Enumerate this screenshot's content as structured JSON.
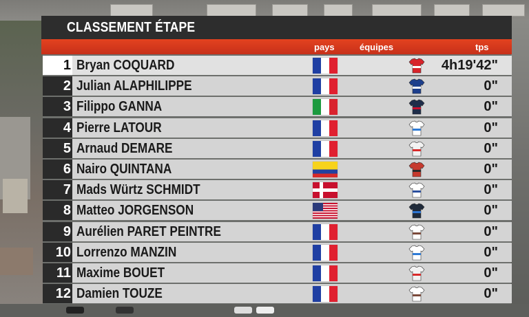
{
  "title": "CLASSEMENT ÉTAPE",
  "columns": {
    "pays": "pays",
    "equipes": "équipes",
    "tps": "tps"
  },
  "rows": [
    {
      "pos": "1",
      "name": "Bryan COQUARD",
      "flag": "france-flag",
      "jersey": "cofidis-jersey",
      "time": "4h19'42\""
    },
    {
      "pos": "2",
      "name": "Julian ALAPHILIPPE",
      "flag": "france-flag",
      "jersey": "soudal-quickstep-jersey",
      "time": "0\""
    },
    {
      "pos": "3",
      "name": "Filippo GANNA",
      "flag": "italy-flag",
      "jersey": "ineos-jersey",
      "time": "0\""
    },
    {
      "pos": "4",
      "name": "Pierre LATOUR",
      "flag": "france-flag",
      "jersey": "totalenergies-jersey",
      "time": "0\""
    },
    {
      "pos": "5",
      "name": "Arnaud DEMARE",
      "flag": "france-flag",
      "jersey": "arkea-jersey",
      "time": "0\""
    },
    {
      "pos": "6",
      "name": "Nairo QUINTANA",
      "flag": "colombia-flag",
      "jersey": "movistar-jersey",
      "time": "0\""
    },
    {
      "pos": "7",
      "name": "Mads Würtz SCHMIDT",
      "flag": "denmark-flag",
      "jersey": "jayco-jersey",
      "time": "0\""
    },
    {
      "pos": "8",
      "name": "Matteo JORGENSON",
      "flag": "usa-flag",
      "jersey": "visma-jersey",
      "time": "0\""
    },
    {
      "pos": "9",
      "name": "Aurélien PARET PEINTRE",
      "flag": "france-flag",
      "jersey": "decathlon-ag2r-jersey",
      "time": "0\""
    },
    {
      "pos": "10",
      "name": "Lorrenzo MANZIN",
      "flag": "france-flag",
      "jersey": "totalenergies-jersey",
      "time": "0\""
    },
    {
      "pos": "11",
      "name": "Maxime BOUET",
      "flag": "france-flag",
      "jersey": "arkea-jersey",
      "time": "0\""
    },
    {
      "pos": "12",
      "name": "Damien TOUZE",
      "flag": "france-flag",
      "jersey": "decathlon-ag2r-jersey",
      "time": "0\""
    }
  ],
  "colors": {
    "header_red": "#d63a1d",
    "title_bar": "#2d2d2d",
    "row_bg": "#d4d4d4"
  }
}
